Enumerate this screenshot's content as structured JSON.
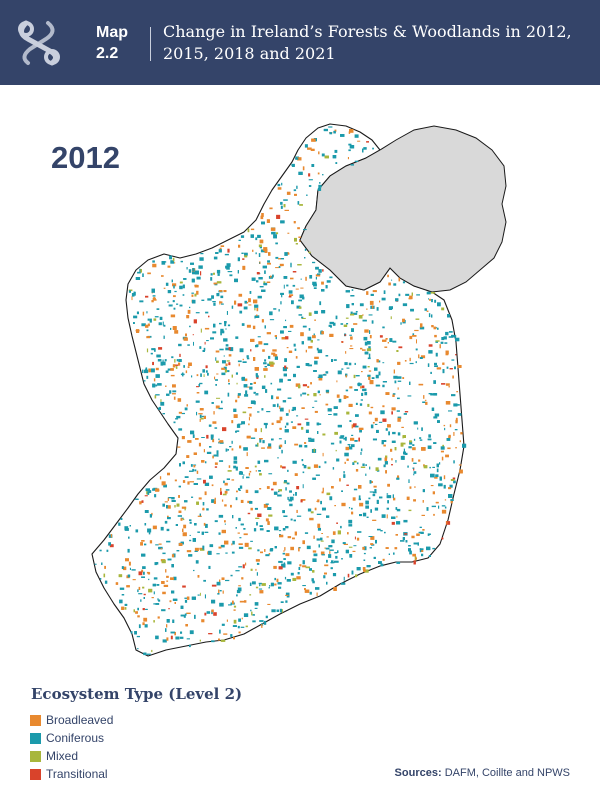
{
  "header": {
    "map_label": "Map 2.2",
    "title": "Change in Ireland’s Forests & Woodlands in 2012, 2015, 2018 and 2021",
    "logo_icon": "chain-link-logo-icon"
  },
  "year_label": "2012",
  "map": {
    "fill_colors": {
      "land": "#ffffff",
      "coast_line": "#1a1a1a",
      "northern_ireland": "#d9d9d9"
    }
  },
  "legend": {
    "title": "Ecosystem Type (Level 2)",
    "items": [
      {
        "label": "Broadleaved",
        "color": "#e8892f"
      },
      {
        "label": "Coniferous",
        "color": "#1b9aab"
      },
      {
        "label": "Mixed",
        "color": "#a8b63c"
      },
      {
        "label": "Transitional",
        "color": "#d9432b"
      }
    ]
  },
  "sources": {
    "prefix": "Sources:",
    "text": "DAFM, Coillte and NPWS"
  }
}
